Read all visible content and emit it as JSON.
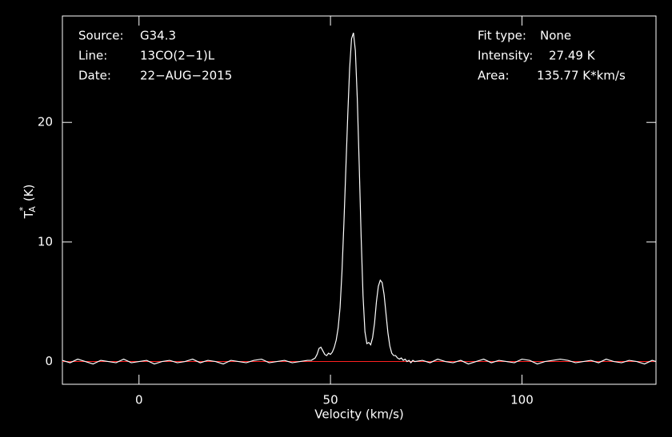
{
  "chart_data": {
    "type": "line",
    "xlabel": "Velocity (km/s)",
    "ylabel": {
      "main": "T",
      "sup": "*",
      "sub": "A",
      "unit": "(K)"
    },
    "info_left": [
      {
        "label": "Source:",
        "value": "G34.3"
      },
      {
        "label": "Line:",
        "value": "13CO(2−1)L"
      },
      {
        "label": "Date:",
        "value": "22−AUG−2015"
      }
    ],
    "info_right": [
      {
        "label": "Fit type:",
        "value": "None"
      },
      {
        "label": "Intensity:",
        "value": "27.49 K"
      },
      {
        "label": "Area:",
        "value": "135.77 K*km/s"
      }
    ],
    "xlim": [
      -20,
      135
    ],
    "ylim": [
      -1.9,
      28.9
    ],
    "xticks": [
      0,
      50,
      100
    ],
    "yticks": [
      0,
      10,
      20
    ],
    "baseline": 0,
    "baseline_color": "#ff2020",
    "x": [
      -20,
      -18,
      -16,
      -14,
      -12,
      -10,
      -8,
      -6,
      -4,
      -2,
      0,
      2,
      4,
      6,
      8,
      10,
      12,
      14,
      16,
      18,
      20,
      22,
      24,
      26,
      28,
      30,
      32,
      34,
      36,
      38,
      40,
      42,
      44,
      45,
      45.5,
      46,
      46.5,
      47,
      47.5,
      48,
      48.5,
      49,
      49.5,
      50,
      50.5,
      51,
      51.5,
      52,
      52.5,
      53,
      53.5,
      54,
      54.5,
      55,
      55.5,
      56,
      56.5,
      57,
      57.5,
      58,
      58.5,
      59,
      59.5,
      60,
      60.5,
      61,
      61.5,
      62,
      62.5,
      63,
      63.5,
      64,
      64.5,
      65,
      65.5,
      66,
      66.5,
      67,
      67.5,
      68,
      68.5,
      69,
      69.5,
      70,
      70.5,
      71,
      71.5,
      72,
      74,
      76,
      78,
      80,
      82,
      84,
      86,
      88,
      90,
      92,
      94,
      96,
      98,
      100,
      102,
      104,
      106,
      108,
      110,
      112,
      114,
      116,
      118,
      120,
      122,
      124,
      126,
      128,
      130,
      132,
      134,
      135
    ],
    "series": [
      {
        "name": "spectrum",
        "color": "#ffffff",
        "values": [
          0.1,
          -0.1,
          0.2,
          0.0,
          -0.2,
          0.1,
          0.0,
          -0.1,
          0.2,
          -0.1,
          0.0,
          0.1,
          -0.2,
          0.0,
          0.1,
          -0.1,
          0.0,
          0.2,
          -0.1,
          0.1,
          0.0,
          -0.2,
          0.1,
          0.0,
          -0.1,
          0.1,
          0.2,
          -0.1,
          0.0,
          0.1,
          -0.1,
          0.0,
          0.1,
          0.1,
          0.2,
          0.3,
          0.6,
          1.1,
          1.2,
          0.9,
          0.6,
          0.5,
          0.7,
          0.6,
          0.8,
          1.2,
          1.8,
          2.8,
          4.5,
          7.5,
          11.5,
          16,
          20.5,
          24.5,
          27.0,
          27.49,
          26.0,
          22.0,
          16.5,
          10.5,
          5.5,
          2.5,
          1.5,
          1.6,
          1.4,
          2.0,
          3.2,
          5.0,
          6.3,
          6.8,
          6.6,
          5.6,
          4.0,
          2.4,
          1.3,
          0.7,
          0.5,
          0.5,
          0.3,
          0.2,
          0.3,
          0.1,
          0.2,
          0.0,
          0.1,
          -0.1,
          0.1,
          0.0,
          0.1,
          -0.1,
          0.2,
          0.0,
          -0.1,
          0.1,
          -0.2,
          0.0,
          0.2,
          -0.1,
          0.1,
          0.0,
          -0.1,
          0.2,
          0.1,
          -0.2,
          0.0,
          0.1,
          0.2,
          0.1,
          -0.1,
          0.0,
          0.1,
          -0.1,
          0.2,
          0.0,
          -0.1,
          0.1,
          0.0,
          -0.2,
          0.1,
          0.0
        ]
      }
    ]
  }
}
